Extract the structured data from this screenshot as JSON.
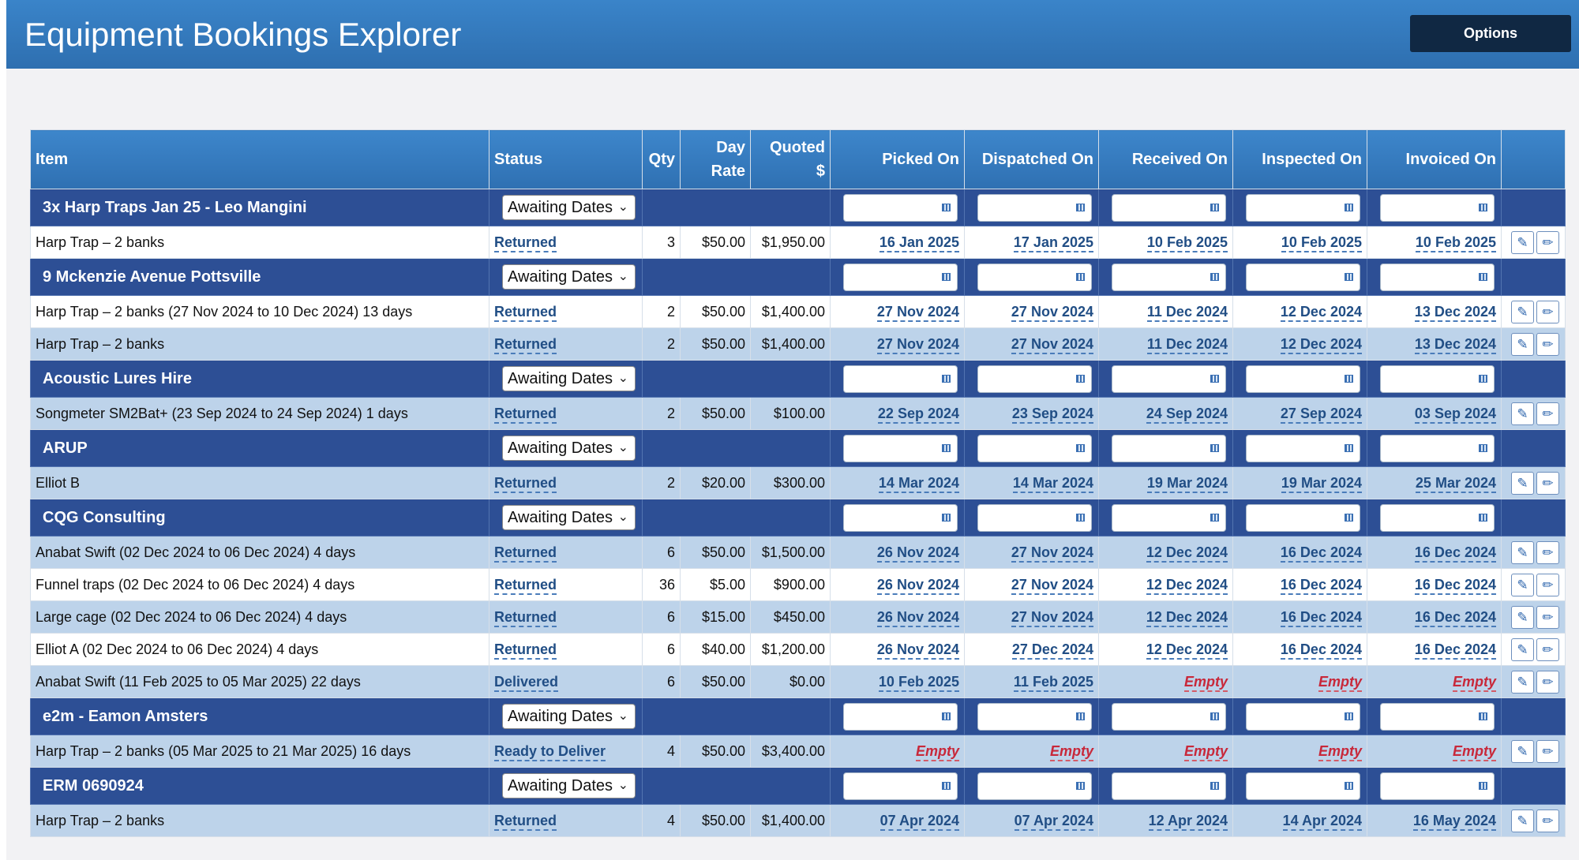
{
  "app": {
    "title": "Equipment Bookings Explorer",
    "options_label": "Options"
  },
  "columns": {
    "item": "Item",
    "status": "Status",
    "qty": "Qty",
    "day_rate_1": "Day",
    "day_rate_2": "Rate",
    "quoted_1": "Quoted",
    "quoted_2": "$",
    "picked": "Picked On",
    "dispatched": "Dispatched On",
    "received": "Received On",
    "inspected": "Inspected On",
    "invoiced": "Invoiced On"
  },
  "icons": {
    "calendar": "calendar-icon",
    "edit": "edit-icon",
    "pencil": "pencil-icon"
  },
  "colors": {
    "header": "#3178bd",
    "group_row": "#2d4f95",
    "alt_row": "#bdd3ea",
    "empty": "#c8283a"
  },
  "rows": [
    {
      "kind": "group",
      "name": "3x Harp Traps Jan 25 - Leo Mangini",
      "status": "Awaiting Dates"
    },
    {
      "kind": "item",
      "shade": "white",
      "item": "Harp Trap – 2 banks",
      "status": "Returned",
      "qty": "3",
      "rate": "$50.00",
      "quoted": "$1,950.00",
      "picked": "16 Jan 2025",
      "dispatched": "17 Jan 2025",
      "received": "10 Feb 2025",
      "inspected": "10 Feb 2025",
      "invoiced": "10 Feb 2025"
    },
    {
      "kind": "group",
      "name": "9 Mckenzie Avenue Pottsville",
      "status": "Awaiting Dates"
    },
    {
      "kind": "item",
      "shade": "white",
      "item": "Harp Trap – 2 banks (27 Nov 2024 to 10 Dec 2024) 13 days",
      "status": "Returned",
      "qty": "2",
      "rate": "$50.00",
      "quoted": "$1,400.00",
      "picked": "27 Nov 2024",
      "dispatched": "27 Nov 2024",
      "received": "11 Dec 2024",
      "inspected": "12 Dec 2024",
      "invoiced": "13 Dec 2024"
    },
    {
      "kind": "item",
      "shade": "blue",
      "item": "Harp Trap – 2 banks",
      "status": "Returned",
      "qty": "2",
      "rate": "$50.00",
      "quoted": "$1,400.00",
      "picked": "27 Nov 2024",
      "dispatched": "27 Nov 2024",
      "received": "11 Dec 2024",
      "inspected": "12 Dec 2024",
      "invoiced": "13 Dec 2024"
    },
    {
      "kind": "group",
      "name": "Acoustic Lures Hire",
      "status": "Awaiting Dates"
    },
    {
      "kind": "item",
      "shade": "blue",
      "item": "Songmeter SM2Bat+ (23 Sep 2024 to 24 Sep 2024) 1 days",
      "status": "Returned",
      "qty": "2",
      "rate": "$50.00",
      "quoted": "$100.00",
      "picked": "22 Sep 2024",
      "dispatched": "23 Sep 2024",
      "received": "24 Sep 2024",
      "inspected": "27 Sep 2024",
      "invoiced": "03 Sep 2024"
    },
    {
      "kind": "group",
      "name": "ARUP",
      "status": "Awaiting Dates"
    },
    {
      "kind": "item",
      "shade": "blue",
      "item": "Elliot B",
      "status": "Returned",
      "qty": "2",
      "rate": "$20.00",
      "quoted": "$300.00",
      "picked": "14 Mar 2024",
      "dispatched": "14 Mar 2024",
      "received": "19 Mar 2024",
      "inspected": "19 Mar 2024",
      "invoiced": "25 Mar 2024"
    },
    {
      "kind": "group",
      "name": "CQG Consulting",
      "status": "Awaiting Dates"
    },
    {
      "kind": "item",
      "shade": "blue",
      "item": "Anabat Swift (02 Dec 2024 to 06 Dec 2024) 4 days",
      "status": "Returned",
      "qty": "6",
      "rate": "$50.00",
      "quoted": "$1,500.00",
      "picked": "26 Nov 2024",
      "dispatched": "27 Nov 2024",
      "received": "12 Dec 2024",
      "inspected": "16 Dec 2024",
      "invoiced": "16 Dec 2024"
    },
    {
      "kind": "item",
      "shade": "white",
      "item": "Funnel traps (02 Dec 2024 to 06 Dec 2024) 4 days",
      "status": "Returned",
      "qty": "36",
      "rate": "$5.00",
      "quoted": "$900.00",
      "picked": "26 Nov 2024",
      "dispatched": "27 Nov 2024",
      "received": "12 Dec 2024",
      "inspected": "16 Dec 2024",
      "invoiced": "16 Dec 2024"
    },
    {
      "kind": "item",
      "shade": "blue",
      "item": "Large cage (02 Dec 2024 to 06 Dec 2024) 4 days",
      "status": "Returned",
      "qty": "6",
      "rate": "$15.00",
      "quoted": "$450.00",
      "picked": "26 Nov 2024",
      "dispatched": "27 Nov 2024",
      "received": "12 Dec 2024",
      "inspected": "16 Dec 2024",
      "invoiced": "16 Dec 2024"
    },
    {
      "kind": "item",
      "shade": "white",
      "item": "Elliot A (02 Dec 2024 to 06 Dec 2024) 4 days",
      "status": "Returned",
      "qty": "6",
      "rate": "$40.00",
      "quoted": "$1,200.00",
      "picked": "26 Nov 2024",
      "dispatched": "27 Dec 2024",
      "received": "12 Dec 2024",
      "inspected": "16 Dec 2024",
      "invoiced": "16 Dec 2024"
    },
    {
      "kind": "item",
      "shade": "blue",
      "item": "Anabat Swift (11 Feb 2025 to 05 Mar 2025) 22 days",
      "status": "Delivered",
      "qty": "6",
      "rate": "$50.00",
      "quoted": "$0.00",
      "picked": "10 Feb 2025",
      "dispatched": "11 Feb 2025",
      "received": "Empty",
      "inspected": "Empty",
      "invoiced": "Empty"
    },
    {
      "kind": "group",
      "name": "e2m - Eamon Amsters",
      "status": "Awaiting Dates"
    },
    {
      "kind": "item",
      "shade": "blue",
      "item": "Harp Trap – 2 banks (05 Mar 2025 to 21 Mar 2025) 16 days",
      "status": "Ready to Deliver",
      "qty": "4",
      "rate": "$50.00",
      "quoted": "$3,400.00",
      "picked": "Empty",
      "dispatched": "Empty",
      "received": "Empty",
      "inspected": "Empty",
      "invoiced": "Empty"
    },
    {
      "kind": "group",
      "name": "ERM 0690924",
      "status": "Awaiting Dates"
    },
    {
      "kind": "item",
      "shade": "blue",
      "item": "Harp Trap – 2 banks",
      "status": "Returned",
      "qty": "4",
      "rate": "$50.00",
      "quoted": "$1,400.00",
      "picked": "07 Apr 2024",
      "dispatched": "07 Apr 2024",
      "received": "12 Apr 2024",
      "inspected": "14 Apr 2024",
      "invoiced": "16 May 2024"
    }
  ]
}
